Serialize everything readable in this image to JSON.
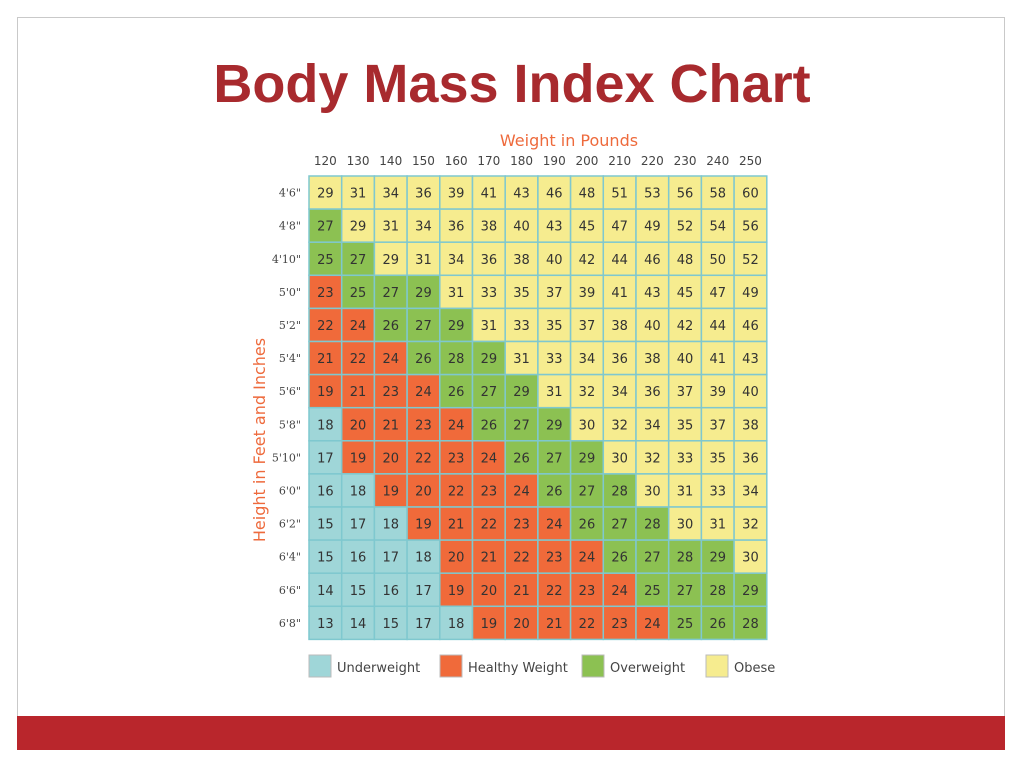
{
  "slide": {
    "title": "Body Mass Index Chart"
  },
  "chart_data": {
    "type": "table",
    "xlabel": "Weight in Pounds",
    "ylabel": "Height in Feet and Inches",
    "weights": [
      "120",
      "130",
      "140",
      "150",
      "160",
      "170",
      "180",
      "190",
      "200",
      "210",
      "220",
      "230",
      "240",
      "250"
    ],
    "heights": [
      "4'6\"",
      "4'8\"",
      "4'10\"",
      "5'0\"",
      "5'2\"",
      "5'4\"",
      "5'6\"",
      "5'8\"",
      "5'10\"",
      "6'0\"",
      "6'2\"",
      "6'4\"",
      "6'6\"",
      "6'8\""
    ],
    "values": [
      [
        29,
        31,
        34,
        36,
        39,
        41,
        43,
        46,
        48,
        51,
        53,
        56,
        58,
        60
      ],
      [
        27,
        29,
        31,
        34,
        36,
        38,
        40,
        43,
        45,
        47,
        49,
        52,
        54,
        56
      ],
      [
        25,
        27,
        29,
        31,
        34,
        36,
        38,
        40,
        42,
        44,
        46,
        48,
        50,
        52
      ],
      [
        23,
        25,
        27,
        29,
        31,
        33,
        35,
        37,
        39,
        41,
        43,
        45,
        47,
        49
      ],
      [
        22,
        24,
        26,
        27,
        29,
        31,
        33,
        35,
        37,
        38,
        40,
        42,
        44,
        46
      ],
      [
        21,
        22,
        24,
        26,
        28,
        29,
        31,
        33,
        34,
        36,
        38,
        40,
        41,
        43
      ],
      [
        19,
        21,
        23,
        24,
        26,
        27,
        29,
        31,
        32,
        34,
        36,
        37,
        39,
        40
      ],
      [
        18,
        20,
        21,
        23,
        24,
        26,
        27,
        29,
        30,
        32,
        34,
        35,
        37,
        38
      ],
      [
        17,
        19,
        20,
        22,
        23,
        24,
        26,
        27,
        29,
        30,
        32,
        33,
        35,
        36
      ],
      [
        16,
        18,
        19,
        20,
        22,
        23,
        24,
        26,
        27,
        28,
        30,
        31,
        33,
        34
      ],
      [
        15,
        17,
        18,
        19,
        21,
        22,
        23,
        24,
        26,
        27,
        28,
        30,
        31,
        32
      ],
      [
        15,
        16,
        17,
        18,
        20,
        21,
        22,
        23,
        24,
        26,
        27,
        28,
        29,
        30
      ],
      [
        14,
        15,
        16,
        17,
        19,
        20,
        21,
        22,
        23,
        24,
        25,
        27,
        28,
        29
      ],
      [
        13,
        14,
        15,
        17,
        18,
        19,
        20,
        21,
        22,
        23,
        24,
        25,
        26,
        28
      ]
    ],
    "categories": [
      [
        3,
        3,
        3,
        3,
        3,
        3,
        3,
        3,
        3,
        3,
        3,
        3,
        3,
        3
      ],
      [
        2,
        3,
        3,
        3,
        3,
        3,
        3,
        3,
        3,
        3,
        3,
        3,
        3,
        3
      ],
      [
        2,
        2,
        3,
        3,
        3,
        3,
        3,
        3,
        3,
        3,
        3,
        3,
        3,
        3
      ],
      [
        1,
        2,
        2,
        2,
        3,
        3,
        3,
        3,
        3,
        3,
        3,
        3,
        3,
        3
      ],
      [
        1,
        1,
        2,
        2,
        2,
        3,
        3,
        3,
        3,
        3,
        3,
        3,
        3,
        3
      ],
      [
        1,
        1,
        1,
        2,
        2,
        2,
        3,
        3,
        3,
        3,
        3,
        3,
        3,
        3
      ],
      [
        1,
        1,
        1,
        1,
        2,
        2,
        2,
        3,
        3,
        3,
        3,
        3,
        3,
        3
      ],
      [
        0,
        1,
        1,
        1,
        1,
        2,
        2,
        2,
        3,
        3,
        3,
        3,
        3,
        3
      ],
      [
        0,
        1,
        1,
        1,
        1,
        1,
        2,
        2,
        2,
        3,
        3,
        3,
        3,
        3
      ],
      [
        0,
        0,
        1,
        1,
        1,
        1,
        1,
        2,
        2,
        2,
        3,
        3,
        3,
        3
      ],
      [
        0,
        0,
        0,
        1,
        1,
        1,
        1,
        1,
        2,
        2,
        2,
        3,
        3,
        3
      ],
      [
        0,
        0,
        0,
        0,
        1,
        1,
        1,
        1,
        1,
        2,
        2,
        2,
        2,
        3
      ],
      [
        0,
        0,
        0,
        0,
        1,
        1,
        1,
        1,
        1,
        1,
        2,
        2,
        2,
        2
      ],
      [
        0,
        0,
        0,
        0,
        0,
        1,
        1,
        1,
        1,
        1,
        1,
        2,
        2,
        2
      ]
    ],
    "legend": [
      {
        "label": "Underweight",
        "color": "#9fd6d8"
      },
      {
        "label": "Healthy Weight",
        "color": "#f06a3a"
      },
      {
        "label": "Overweight",
        "color": "#8cc152"
      },
      {
        "label": "Obese",
        "color": "#f6ec8f"
      }
    ],
    "grid_line_color": "#7fc8cf"
  }
}
